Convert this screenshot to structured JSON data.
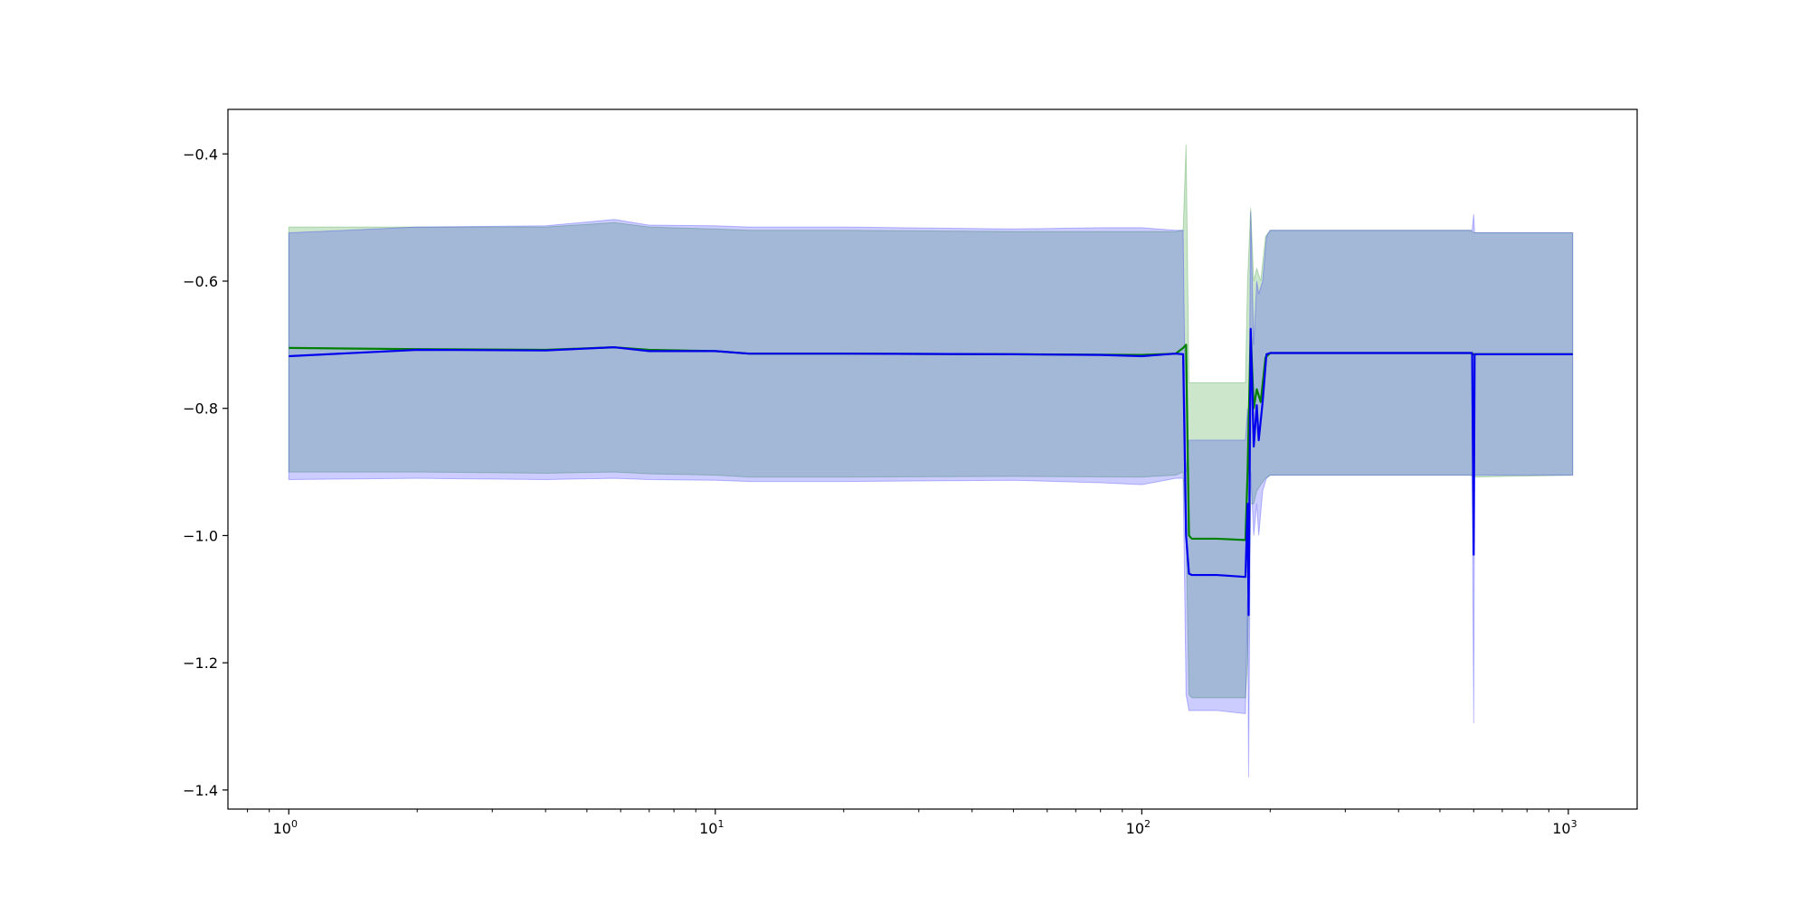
{
  "chart_data": {
    "type": "line",
    "x_scale": "log",
    "xlim": [
      0.72,
      1450
    ],
    "ylim": [
      -1.43,
      -0.33
    ],
    "grid": false,
    "x_ticks": [
      {
        "value": 1,
        "base": "10",
        "exp": "0"
      },
      {
        "value": 10,
        "base": "10",
        "exp": "1"
      },
      {
        "value": 100,
        "base": "10",
        "exp": "2"
      },
      {
        "value": 1000,
        "base": "10",
        "exp": "3"
      }
    ],
    "y_ticks": [
      {
        "value": -0.4,
        "label": "−0.4"
      },
      {
        "value": -0.6,
        "label": "−0.6"
      },
      {
        "value": -0.8,
        "label": "−0.8"
      },
      {
        "value": -1.0,
        "label": "−1.0"
      },
      {
        "value": -1.2,
        "label": "−1.2"
      },
      {
        "value": -1.4,
        "label": "−1.4"
      }
    ],
    "series": [
      {
        "color": "#008000",
        "band_color": "#008000",
        "band_opacity": 0.2,
        "points": [
          {
            "x": 1,
            "y": -0.705,
            "lo": -0.9,
            "hi": -0.515
          },
          {
            "x": 2,
            "y": -0.707,
            "lo": -0.9,
            "hi": -0.515
          },
          {
            "x": 4,
            "y": -0.708,
            "lo": -0.902,
            "hi": -0.515
          },
          {
            "x": 5.8,
            "y": -0.704,
            "lo": -0.9,
            "hi": -0.508
          },
          {
            "x": 7,
            "y": -0.708,
            "lo": -0.903,
            "hi": -0.515
          },
          {
            "x": 10,
            "y": -0.71,
            "lo": -0.905,
            "hi": -0.518
          },
          {
            "x": 12,
            "y": -0.714,
            "lo": -0.908,
            "hi": -0.52
          },
          {
            "x": 20,
            "y": -0.714,
            "lo": -0.908,
            "hi": -0.52
          },
          {
            "x": 50,
            "y": -0.715,
            "lo": -0.907,
            "hi": -0.522
          },
          {
            "x": 100,
            "y": -0.716,
            "lo": -0.908,
            "hi": -0.522
          },
          {
            "x": 120,
            "y": -0.714,
            "lo": -0.905,
            "hi": -0.522
          },
          {
            "x": 125,
            "y": -0.705,
            "lo": -0.9,
            "hi": -0.52
          },
          {
            "x": 127,
            "y": -0.7,
            "lo": -1.0,
            "hi": -0.385
          },
          {
            "x": 129,
            "y": -1.0,
            "lo": -1.25,
            "hi": -0.76
          },
          {
            "x": 131,
            "y": -1.005,
            "lo": -1.255,
            "hi": -0.76
          },
          {
            "x": 150,
            "y": -1.005,
            "lo": -1.255,
            "hi": -0.76
          },
          {
            "x": 175,
            "y": -1.007,
            "lo": -1.255,
            "hi": -0.76
          },
          {
            "x": 177,
            "y": -0.9,
            "lo": -1.2,
            "hi": -0.6
          },
          {
            "x": 180,
            "y": -0.68,
            "lo": -0.95,
            "hi": -0.485
          },
          {
            "x": 183,
            "y": -0.8,
            "lo": -0.95,
            "hi": -0.6
          },
          {
            "x": 186,
            "y": -0.77,
            "lo": -0.93,
            "hi": -0.58
          },
          {
            "x": 190,
            "y": -0.79,
            "lo": -0.92,
            "hi": -0.6
          },
          {
            "x": 195,
            "y": -0.72,
            "lo": -0.91,
            "hi": -0.53
          },
          {
            "x": 200,
            "y": -0.713,
            "lo": -0.905,
            "hi": -0.52
          },
          {
            "x": 300,
            "y": -0.713,
            "lo": -0.905,
            "hi": -0.52
          },
          {
            "x": 590,
            "y": -0.713,
            "lo": -0.905,
            "hi": -0.52
          },
          {
            "x": 600,
            "y": -0.715,
            "lo": -0.908,
            "hi": -0.524
          },
          {
            "x": 1024,
            "y": -0.715,
            "lo": -0.905,
            "hi": -0.524
          }
        ]
      },
      {
        "color": "#0000ee",
        "band_color": "#0000ff",
        "band_opacity": 0.2,
        "points": [
          {
            "x": 1,
            "y": -0.718,
            "lo": -0.912,
            "hi": -0.524
          },
          {
            "x": 2,
            "y": -0.708,
            "lo": -0.91,
            "hi": -0.515
          },
          {
            "x": 4,
            "y": -0.709,
            "lo": -0.912,
            "hi": -0.513
          },
          {
            "x": 5.8,
            "y": -0.704,
            "lo": -0.91,
            "hi": -0.503
          },
          {
            "x": 7,
            "y": -0.71,
            "lo": -0.912,
            "hi": -0.512
          },
          {
            "x": 10,
            "y": -0.71,
            "lo": -0.913,
            "hi": -0.513
          },
          {
            "x": 12,
            "y": -0.714,
            "lo": -0.915,
            "hi": -0.515
          },
          {
            "x": 20,
            "y": -0.714,
            "lo": -0.915,
            "hi": -0.515
          },
          {
            "x": 50,
            "y": -0.715,
            "lo": -0.913,
            "hi": -0.518
          },
          {
            "x": 80,
            "y": -0.716,
            "lo": -0.917,
            "hi": -0.516
          },
          {
            "x": 100,
            "y": -0.718,
            "lo": -0.92,
            "hi": -0.516
          },
          {
            "x": 120,
            "y": -0.714,
            "lo": -0.91,
            "hi": -0.52
          },
          {
            "x": 125,
            "y": -0.715,
            "lo": -0.91,
            "hi": -0.52
          },
          {
            "x": 127,
            "y": -1.0,
            "lo": -1.25,
            "hi": -0.9
          },
          {
            "x": 129,
            "y": -1.06,
            "lo": -1.275,
            "hi": -0.85
          },
          {
            "x": 131,
            "y": -1.062,
            "lo": -1.275,
            "hi": -0.85
          },
          {
            "x": 150,
            "y": -1.062,
            "lo": -1.275,
            "hi": -0.85
          },
          {
            "x": 175,
            "y": -1.065,
            "lo": -1.28,
            "hi": -0.85
          },
          {
            "x": 177,
            "y": -0.95,
            "lo": -1.1,
            "hi": -0.8
          },
          {
            "x": 178,
            "y": -1.125,
            "lo": -1.38,
            "hi": -0.9
          },
          {
            "x": 180,
            "y": -0.675,
            "lo": -0.9,
            "hi": -0.49
          },
          {
            "x": 183,
            "y": -0.86,
            "lo": -1.0,
            "hi": -0.7
          },
          {
            "x": 186,
            "y": -0.795,
            "lo": -0.95,
            "hi": -0.6
          },
          {
            "x": 188,
            "y": -0.85,
            "lo": -1.0,
            "hi": -0.62
          },
          {
            "x": 192,
            "y": -0.79,
            "lo": -0.93,
            "hi": -0.6
          },
          {
            "x": 196,
            "y": -0.715,
            "lo": -0.91,
            "hi": -0.53
          },
          {
            "x": 200,
            "y": -0.713,
            "lo": -0.905,
            "hi": -0.52
          },
          {
            "x": 300,
            "y": -0.713,
            "lo": -0.905,
            "hi": -0.52
          },
          {
            "x": 595,
            "y": -0.713,
            "lo": -0.905,
            "hi": -0.52
          },
          {
            "x": 600,
            "y": -1.03,
            "lo": -1.295,
            "hi": -0.495
          },
          {
            "x": 603,
            "y": -0.715,
            "lo": -0.905,
            "hi": -0.524
          },
          {
            "x": 1024,
            "y": -0.715,
            "lo": -0.905,
            "hi": -0.524
          }
        ]
      }
    ]
  }
}
